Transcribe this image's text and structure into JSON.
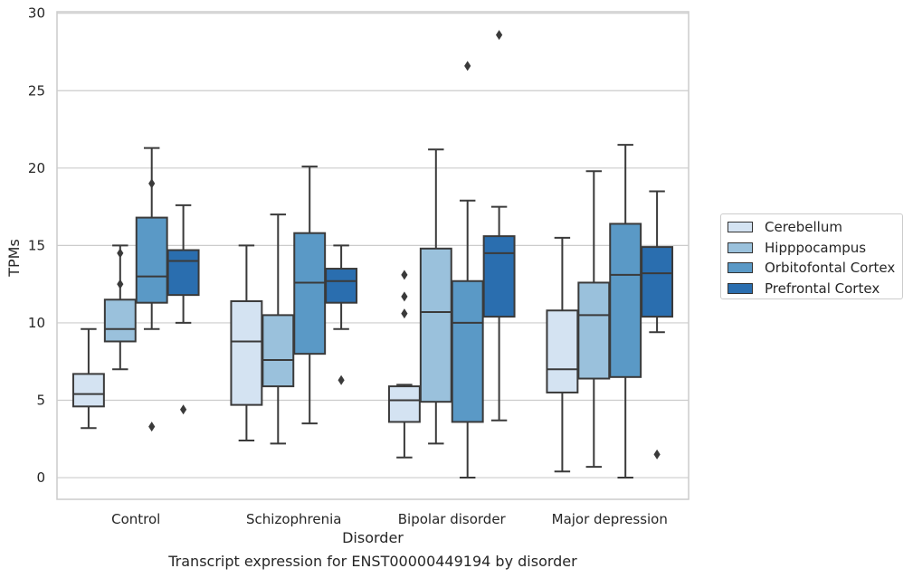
{
  "chart_data": {
    "type": "boxplot",
    "title": "Transcript expression for ENST00000449194 by disorder",
    "xlabel": "Disorder",
    "ylabel": "TPMs",
    "ylim": [
      -1.4,
      30.1
    ],
    "yticks": [
      0,
      5,
      10,
      15,
      20,
      25,
      30
    ],
    "grid": "horizontal",
    "legend_position": "right",
    "categories": [
      "Control",
      "Schizophrenia",
      "Bipolar disorder",
      "Major depression"
    ],
    "series": [
      {
        "name": "Cerebellum",
        "color": "#d4e3f2",
        "boxes": [
          {
            "whisker_low": 3.2,
            "q1": 4.6,
            "median": 5.4,
            "q3": 6.7,
            "whisker_high": 9.6,
            "outliers": []
          },
          {
            "whisker_low": 2.4,
            "q1": 4.7,
            "median": 8.8,
            "q3": 11.4,
            "whisker_high": 15.0,
            "outliers": []
          },
          {
            "whisker_low": 1.3,
            "q1": 3.6,
            "median": 5.0,
            "q3": 5.9,
            "whisker_high": 6.0,
            "outliers": [
              13.1,
              11.7,
              10.6
            ]
          },
          {
            "whisker_low": 0.4,
            "q1": 5.5,
            "median": 7.0,
            "q3": 10.8,
            "whisker_high": 15.5,
            "outliers": []
          }
        ]
      },
      {
        "name": "Hipppocampus",
        "color": "#9ac1dc",
        "boxes": [
          {
            "whisker_low": 7.0,
            "q1": 8.8,
            "median": 9.6,
            "q3": 11.5,
            "whisker_high": 15.0,
            "outliers": [
              14.5,
              12.5
            ]
          },
          {
            "whisker_low": 2.2,
            "q1": 5.9,
            "median": 7.6,
            "q3": 10.5,
            "whisker_high": 17.0,
            "outliers": []
          },
          {
            "whisker_low": 2.2,
            "q1": 4.9,
            "median": 10.7,
            "q3": 14.8,
            "whisker_high": 21.2,
            "outliers": []
          },
          {
            "whisker_low": 0.7,
            "q1": 6.4,
            "median": 10.5,
            "q3": 12.6,
            "whisker_high": 19.8,
            "outliers": []
          }
        ]
      },
      {
        "name": "Orbitofontal Cortex",
        "color": "#5a99c6",
        "boxes": [
          {
            "whisker_low": 9.6,
            "q1": 11.3,
            "median": 13.0,
            "q3": 16.8,
            "whisker_high": 21.3,
            "outliers": [
              19.0,
              3.3
            ]
          },
          {
            "whisker_low": 3.5,
            "q1": 8.0,
            "median": 12.6,
            "q3": 15.8,
            "whisker_high": 20.1,
            "outliers": []
          },
          {
            "whisker_low": 0.0,
            "q1": 3.6,
            "median": 10.0,
            "q3": 12.7,
            "whisker_high": 17.9,
            "outliers": [
              26.6
            ]
          },
          {
            "whisker_low": 0.0,
            "q1": 6.5,
            "median": 13.1,
            "q3": 16.4,
            "whisker_high": 21.5,
            "outliers": []
          }
        ]
      },
      {
        "name": "Prefrontal Cortex",
        "color": "#2a6eaf",
        "boxes": [
          {
            "whisker_low": 10.0,
            "q1": 11.8,
            "median": 14.0,
            "q3": 14.7,
            "whisker_high": 17.6,
            "outliers": [
              4.4
            ]
          },
          {
            "whisker_low": 9.6,
            "q1": 11.3,
            "median": 12.7,
            "q3": 13.5,
            "whisker_high": 15.0,
            "outliers": [
              6.3
            ]
          },
          {
            "whisker_low": 3.7,
            "q1": 10.4,
            "median": 14.5,
            "q3": 15.6,
            "whisker_high": 17.5,
            "outliers": [
              28.6
            ]
          },
          {
            "whisker_low": 9.4,
            "q1": 10.4,
            "median": 13.2,
            "q3": 14.9,
            "whisker_high": 18.5,
            "outliers": [
              1.5
            ]
          }
        ]
      }
    ]
  }
}
